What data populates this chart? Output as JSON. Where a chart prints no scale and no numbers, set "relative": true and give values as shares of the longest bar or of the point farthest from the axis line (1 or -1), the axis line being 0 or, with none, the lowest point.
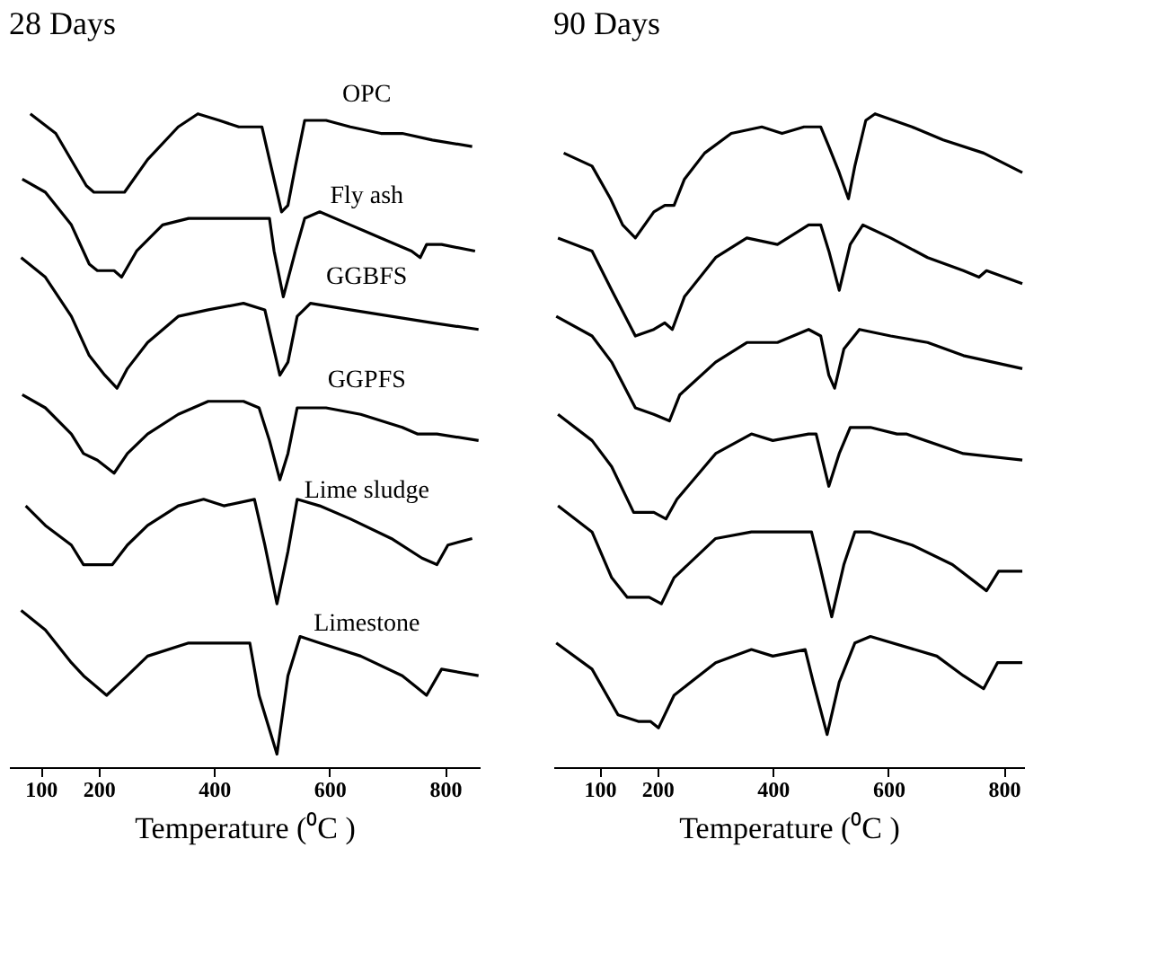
{
  "chart_data": [
    {
      "type": "line",
      "title": "28 Days",
      "xlabel": "Temperature (⁰C )",
      "relative": true,
      "xlim": [
        45,
        860
      ],
      "xticks": [
        100,
        200,
        400,
        600,
        800
      ],
      "grid": false,
      "line_style": "solid",
      "marker": "none",
      "series": [
        {
          "name": "OPC",
          "color": "#000000",
          "x": [
            82,
            126,
            179,
            192,
            232,
            245,
            285,
            338,
            372,
            409,
            443,
            483,
            496,
            517,
            528,
            541,
            557,
            594,
            636,
            689,
            726,
            778,
            847
          ],
          "values": [
            1.0,
            0.97,
            0.89,
            0.88,
            0.88,
            0.88,
            0.93,
            0.98,
            1.0,
            0.99,
            0.98,
            0.98,
            0.93,
            0.85,
            0.86,
            0.92,
            0.99,
            0.99,
            0.98,
            0.97,
            0.97,
            0.96,
            0.95
          ]
        },
        {
          "name": "Fly ash",
          "color": "#000000",
          "x": [
            68,
            108,
            153,
            184,
            198,
            227,
            240,
            266,
            311,
            356,
            398,
            435,
            462,
            496,
            504,
            520,
            541,
            557,
            583,
            636,
            689,
            742,
            757,
            768,
            794,
            852
          ],
          "values": [
            0.9,
            0.88,
            0.83,
            0.77,
            0.76,
            0.76,
            0.75,
            0.79,
            0.83,
            0.84,
            0.84,
            0.84,
            0.84,
            0.84,
            0.79,
            0.72,
            0.79,
            0.84,
            0.85,
            0.83,
            0.81,
            0.79,
            0.78,
            0.8,
            0.8,
            0.79
          ]
        },
        {
          "name": "GGBFS",
          "color": "#000000",
          "x": [
            66,
            108,
            153,
            184,
            211,
            232,
            250,
            285,
            338,
            390,
            451,
            488,
            501,
            514,
            528,
            544,
            567,
            636,
            707,
            778,
            858
          ],
          "values": [
            0.78,
            0.75,
            0.69,
            0.63,
            0.6,
            0.58,
            0.61,
            0.65,
            0.69,
            0.7,
            0.71,
            0.7,
            0.65,
            0.6,
            0.62,
            0.69,
            0.71,
            0.7,
            0.69,
            0.68,
            0.67
          ]
        },
        {
          "name": "GGPFS",
          "color": "#000000",
          "x": [
            68,
            108,
            153,
            174,
            198,
            227,
            250,
            285,
            338,
            390,
            451,
            478,
            496,
            514,
            528,
            544,
            594,
            654,
            726,
            752,
            786,
            858
          ],
          "values": [
            0.57,
            0.55,
            0.51,
            0.48,
            0.47,
            0.45,
            0.48,
            0.51,
            0.54,
            0.56,
            0.56,
            0.55,
            0.5,
            0.44,
            0.48,
            0.55,
            0.55,
            0.54,
            0.52,
            0.51,
            0.51,
            0.5
          ]
        },
        {
          "name": "Lime sludge",
          "color": "#000000",
          "x": [
            74,
            108,
            153,
            174,
            224,
            250,
            285,
            338,
            382,
            417,
            470,
            488,
            509,
            528,
            544,
            583,
            636,
            707,
            760,
            786,
            805,
            847
          ],
          "values": [
            0.4,
            0.37,
            0.34,
            0.31,
            0.31,
            0.34,
            0.37,
            0.4,
            0.41,
            0.4,
            0.41,
            0.34,
            0.25,
            0.33,
            0.41,
            0.4,
            0.38,
            0.35,
            0.32,
            0.31,
            0.34,
            0.35
          ]
        },
        {
          "name": "Limestone",
          "color": "#000000",
          "x": [
            66,
            108,
            153,
            174,
            214,
            250,
            285,
            356,
            409,
            462,
            478,
            509,
            528,
            549,
            583,
            654,
            726,
            768,
            794,
            858
          ],
          "values": [
            0.24,
            0.21,
            0.16,
            0.14,
            0.11,
            0.14,
            0.17,
            0.19,
            0.19,
            0.19,
            0.11,
            0.02,
            0.14,
            0.2,
            0.19,
            0.17,
            0.14,
            0.11,
            0.15,
            0.14
          ]
        }
      ]
    },
    {
      "type": "line",
      "title": "90 Days",
      "xlabel": "Temperature (⁰C )",
      "relative": true,
      "xlim": [
        20,
        835
      ],
      "xticks": [
        100,
        200,
        400,
        600,
        800
      ],
      "grid": false,
      "line_style": "solid",
      "marker": "none",
      "series": [
        {
          "color": "#000000",
          "x": [
            38,
            87,
            119,
            140,
            162,
            194,
            213,
            229,
            247,
            282,
            328,
            381,
            416,
            454,
            483,
            497,
            515,
            531,
            542,
            561,
            577,
            641,
            695,
            765,
            832
          ],
          "values": [
            0.94,
            0.92,
            0.87,
            0.83,
            0.81,
            0.85,
            0.86,
            0.86,
            0.9,
            0.94,
            0.97,
            0.98,
            0.97,
            0.98,
            0.98,
            0.95,
            0.91,
            0.87,
            0.92,
            0.99,
            1.0,
            0.98,
            0.96,
            0.94,
            0.91
          ]
        },
        {
          "color": "#000000",
          "x": [
            28,
            87,
            121,
            162,
            194,
            213,
            226,
            247,
            301,
            355,
            408,
            462,
            483,
            497,
            515,
            534,
            556,
            604,
            668,
            730,
            757,
            770,
            832
          ],
          "values": [
            0.81,
            0.79,
            0.73,
            0.66,
            0.67,
            0.68,
            0.67,
            0.72,
            0.78,
            0.81,
            0.8,
            0.83,
            0.83,
            0.79,
            0.73,
            0.8,
            0.83,
            0.81,
            0.78,
            0.76,
            0.75,
            0.76,
            0.74
          ]
        },
        {
          "color": "#000000",
          "x": [
            25,
            87,
            121,
            162,
            194,
            221,
            239,
            301,
            355,
            408,
            462,
            483,
            497,
            507,
            523,
            550,
            604,
            668,
            730,
            832
          ],
          "values": [
            0.69,
            0.66,
            0.62,
            0.55,
            0.54,
            0.53,
            0.57,
            0.62,
            0.65,
            0.65,
            0.67,
            0.66,
            0.6,
            0.58,
            0.64,
            0.67,
            0.66,
            0.65,
            0.63,
            0.61
          ]
        },
        {
          "color": "#000000",
          "x": [
            28,
            87,
            121,
            159,
            194,
            215,
            234,
            301,
            363,
            400,
            462,
            475,
            497,
            515,
            534,
            569,
            615,
            631,
            730,
            832
          ],
          "values": [
            0.54,
            0.5,
            0.46,
            0.39,
            0.39,
            0.38,
            0.41,
            0.48,
            0.51,
            0.5,
            0.51,
            0.51,
            0.43,
            0.48,
            0.52,
            0.52,
            0.51,
            0.51,
            0.48,
            0.47
          ]
        },
        {
          "color": "#000000",
          "x": [
            28,
            87,
            121,
            148,
            186,
            207,
            229,
            301,
            363,
            408,
            467,
            481,
            502,
            523,
            542,
            569,
            641,
            711,
            770,
            791,
            832
          ],
          "values": [
            0.4,
            0.36,
            0.29,
            0.26,
            0.26,
            0.25,
            0.29,
            0.35,
            0.36,
            0.36,
            0.36,
            0.31,
            0.23,
            0.31,
            0.36,
            0.36,
            0.34,
            0.31,
            0.27,
            0.3,
            0.3
          ]
        },
        {
          "color": "#000000",
          "x": [
            25,
            87,
            132,
            167,
            188,
            202,
            229,
            301,
            363,
            400,
            456,
            470,
            494,
            515,
            542,
            569,
            684,
            730,
            765,
            789,
            832
          ],
          "values": [
            0.19,
            0.15,
            0.08,
            0.07,
            0.07,
            0.06,
            0.11,
            0.16,
            0.18,
            0.17,
            0.18,
            0.13,
            0.05,
            0.13,
            0.19,
            0.2,
            0.17,
            0.14,
            0.12,
            0.16,
            0.16
          ]
        }
      ]
    }
  ]
}
